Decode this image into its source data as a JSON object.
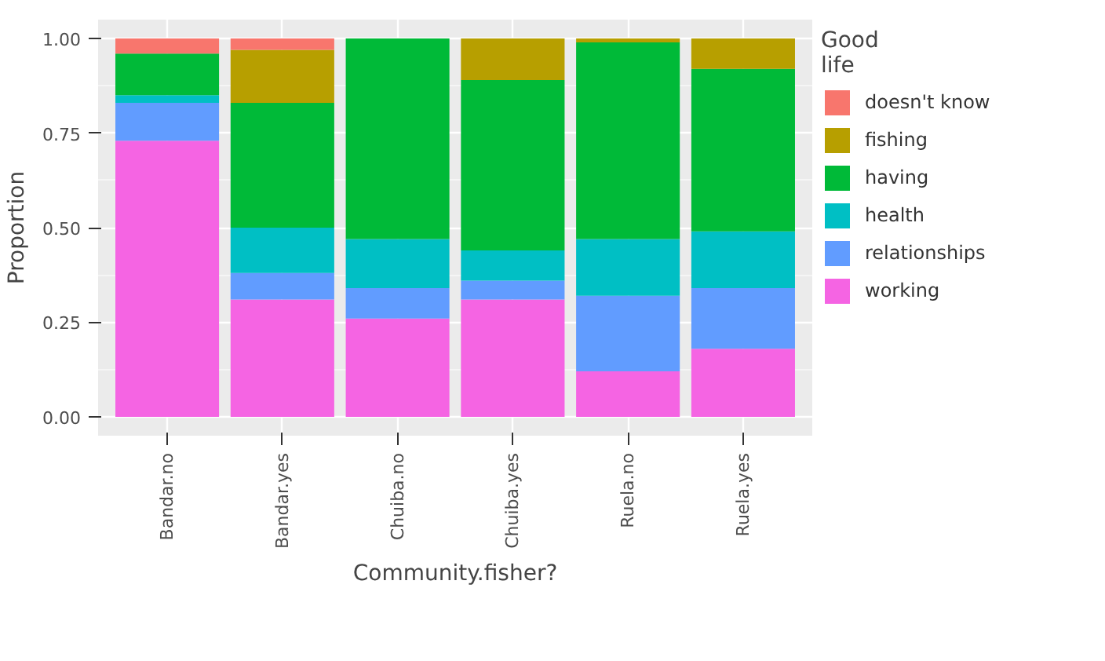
{
  "chart_data": {
    "type": "bar",
    "stacked": true,
    "xlabel": "Community.fisher?",
    "ylabel": "Proportion",
    "legend_title": "Good\nlife",
    "legend": "right",
    "grid": true,
    "categories": [
      "Bandar.no",
      "Bandar.yes",
      "Chuiba.no",
      "Chuiba.yes",
      "Ruela.no",
      "Ruela.yes"
    ],
    "ylim": [
      -0.05,
      1.05
    ],
    "yticks": [
      {
        "value": 0,
        "label": "0.00"
      },
      {
        "value": 0.25,
        "label": "0.25"
      },
      {
        "value": 0.5,
        "label": "0.50"
      },
      {
        "value": 0.75,
        "label": "0.75"
      },
      {
        "value": 1,
        "label": "1.00"
      }
    ],
    "series": [
      {
        "name": "working",
        "color": "#f564e3",
        "values": [
          0.73,
          0.31,
          0.26,
          0.31,
          0.12,
          0.18
        ]
      },
      {
        "name": "relationships",
        "color": "#619cff",
        "values": [
          0.1,
          0.07,
          0.08,
          0.05,
          0.2,
          0.16
        ]
      },
      {
        "name": "health",
        "color": "#00bfc4",
        "values": [
          0.02,
          0.12,
          0.13,
          0.08,
          0.15,
          0.15
        ]
      },
      {
        "name": "having",
        "color": "#00ba38",
        "values": [
          0.11,
          0.33,
          0.53,
          0.45,
          0.52,
          0.43
        ]
      },
      {
        "name": "fishing",
        "color": "#b79f00",
        "values": [
          0,
          0.14,
          0,
          0.11,
          0.01,
          0.08
        ]
      },
      {
        "name": "doesn't know",
        "color": "#f8766d",
        "values": [
          0.04,
          0.03,
          0,
          0,
          0,
          0
        ]
      }
    ]
  }
}
